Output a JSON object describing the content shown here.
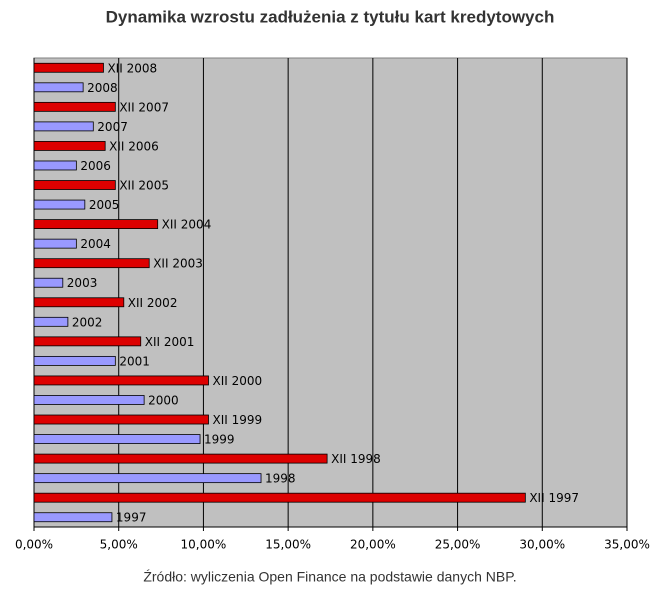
{
  "chart_data": {
    "type": "barh",
    "title": "Dynamika wzrostu zadłużenia z tytułu kart kredytowych",
    "source": "Źródło: wyliczenia Open Finance na podstawie danych NBP.",
    "categories": [
      "XII 2008",
      "2008",
      "XII 2007",
      "2007",
      "XII 2006",
      "2006",
      "XII 2005",
      "2005",
      "XII 2004",
      "2004",
      "XII 2003",
      "2003",
      "XII 2002",
      "2002",
      "XII 2001",
      "2001",
      "XII 2000",
      "2000",
      "XII 1999",
      "1999",
      "XII 1998",
      "1998",
      "XII 1997",
      "1997"
    ],
    "values": [
      4.1,
      2.9,
      4.8,
      3.5,
      4.2,
      2.5,
      4.8,
      3.0,
      7.3,
      2.5,
      6.8,
      1.7,
      5.3,
      2.0,
      6.3,
      4.8,
      10.3,
      6.5,
      10.3,
      9.8,
      17.3,
      13.4,
      29.0,
      4.6
    ],
    "colors": [
      "#dd0000",
      "#9999ff"
    ],
    "xlim": [
      0,
      35
    ],
    "xticks": [
      {
        "value": 0,
        "label": "0,00%"
      },
      {
        "value": 5,
        "label": "5,00%"
      },
      {
        "value": 10,
        "label": "10,00%"
      },
      {
        "value": 15,
        "label": "15,00%"
      },
      {
        "value": 20,
        "label": "20,00%"
      },
      {
        "value": 25,
        "label": "25,00%"
      },
      {
        "value": 30,
        "label": "30,00%"
      },
      {
        "value": 35,
        "label": "35,00%"
      }
    ],
    "grid": true
  }
}
